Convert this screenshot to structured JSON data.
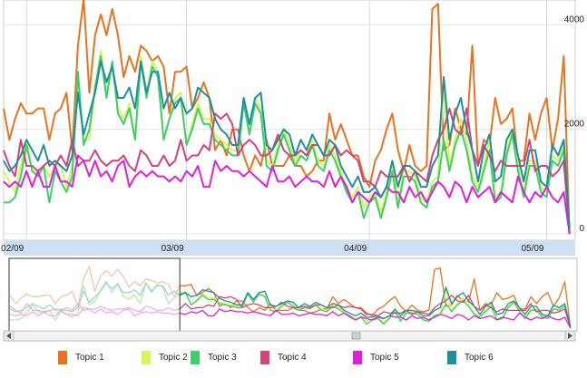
{
  "chart_data": {
    "type": "line",
    "title": "",
    "xlabel": "",
    "ylabel": "",
    "ylim": [
      0,
      4300
    ],
    "y_ticks": [
      {
        "label": "4000",
        "value": 4000
      },
      {
        "label": "2000",
        "value": 2000
      },
      {
        "label": "0",
        "value": 0
      }
    ],
    "x_range": [
      0,
      100
    ],
    "x_ticks": [
      {
        "label": "02/09",
        "value": 4
      },
      {
        "label": "03/09",
        "value": 32
      },
      {
        "label": "04/09",
        "value": 64
      },
      {
        "label": "05/09",
        "value": 95
      }
    ],
    "x": [
      0,
      1,
      2,
      3,
      4,
      5,
      6,
      7,
      8,
      9,
      10,
      11,
      12,
      13,
      14,
      15,
      16,
      17,
      18,
      19,
      20,
      21,
      22,
      23,
      24,
      25,
      26,
      27,
      28,
      29,
      30,
      31,
      32,
      33,
      34,
      35,
      36,
      37,
      38,
      39,
      40,
      41,
      42,
      43,
      44,
      45,
      46,
      47,
      48,
      49,
      50,
      51,
      52,
      53,
      54,
      55,
      56,
      57,
      58,
      59,
      60,
      61,
      62,
      63,
      64,
      65,
      66,
      67,
      68,
      69,
      70,
      71,
      72,
      73,
      74,
      75,
      76,
      77,
      78,
      79,
      80,
      81,
      82,
      83,
      84,
      85,
      86,
      87,
      88,
      89,
      90,
      91,
      92,
      93,
      94,
      95,
      96,
      97,
      98,
      99
    ],
    "series": [
      {
        "name": "Topic 1",
        "color": "#e8731e",
        "values": [
          2400,
          1800,
          2200,
          2500,
          2300,
          2300,
          2400,
          2400,
          1800,
          2300,
          2400,
          2700,
          1600,
          3600,
          4500,
          2700,
          3800,
          4200,
          3800,
          4300,
          3800,
          3000,
          3400,
          3100,
          3600,
          3500,
          3300,
          3400,
          3200,
          2300,
          3100,
          3100,
          3200,
          2400,
          2600,
          2900,
          2600,
          1600,
          1800,
          1500,
          2000,
          2000,
          1500,
          1200,
          1500,
          1300,
          1800,
          1300,
          1300,
          1300,
          1500,
          1300,
          1300,
          1100,
          1200,
          1400,
          1400,
          2300,
          1800,
          2100,
          1800,
          1500,
          1500,
          1100,
          900,
          1400,
          1600,
          2000,
          2300,
          1600,
          1200,
          1700,
          1300,
          1200,
          1300,
          4300,
          4400,
          1600,
          1700,
          2400,
          2000,
          1900,
          3600,
          1300,
          1800,
          1700,
          2600,
          2100,
          2200,
          2400,
          1400,
          1400,
          2300,
          1800,
          2300,
          2600,
          1600,
          2200,
          3400,
          0
        ]
      },
      {
        "name": "Topic 2",
        "color": "#d6f55a",
        "values": [
          1200,
          1000,
          800,
          1300,
          1800,
          1200,
          1200,
          1300,
          1100,
          1300,
          1300,
          900,
          1300,
          3000,
          1800,
          1800,
          2800,
          3500,
          2700,
          3200,
          2400,
          2200,
          2500,
          1800,
          3400,
          2700,
          3300,
          3100,
          1800,
          2200,
          2600,
          2700,
          1700,
          2100,
          2500,
          2200,
          2200,
          1900,
          1800,
          1700,
          1600,
          1600,
          2600,
          2000,
          2600,
          2400,
          1400,
          1300,
          1700,
          2000,
          1700,
          1400,
          1600,
          1500,
          1800,
          1400,
          1300,
          1700,
          1500,
          1200,
          900,
          700,
          900,
          500,
          700,
          800,
          400,
          800,
          1300,
          600,
          1200,
          1200,
          1100,
          700,
          600,
          1000,
          1100,
          2800,
          1300,
          1800,
          2200,
          1800,
          1100,
          900,
          1300,
          1800,
          700,
          800,
          1600,
          2000,
          1300,
          800,
          1400,
          1400,
          900,
          800,
          1500,
          1400,
          1700,
          100
        ]
      },
      {
        "name": "Topic 3",
        "color": "#3dd06a",
        "values": [
          600,
          600,
          700,
          1100,
          1700,
          1200,
          1100,
          1300,
          600,
          1200,
          1000,
          800,
          1100,
          3100,
          1700,
          2000,
          2800,
          3400,
          2600,
          3300,
          2300,
          2100,
          2400,
          1800,
          3300,
          2600,
          3200,
          3000,
          1800,
          2200,
          2500,
          2600,
          1700,
          2000,
          2400,
          2100,
          2100,
          1800,
          1700,
          1600,
          1500,
          1500,
          2500,
          1900,
          2500,
          2300,
          1300,
          1200,
          1600,
          1900,
          1600,
          1300,
          1500,
          1400,
          1700,
          1300,
          1200,
          1600,
          1400,
          1100,
          800,
          600,
          800,
          300,
          600,
          700,
          300,
          700,
          1200,
          500,
          1100,
          1100,
          1000,
          600,
          500,
          900,
          1000,
          1800,
          1200,
          1700,
          2000,
          1600,
          1000,
          800,
          1200,
          1600,
          600,
          700,
          1500,
          1900,
          1200,
          700,
          1300,
          1300,
          800,
          700,
          1400,
          1300,
          1600,
          0
        ]
      },
      {
        "name": "Topic 4",
        "color": "#d4437a",
        "values": [
          1600,
          1300,
          1100,
          1800,
          1300,
          1300,
          1200,
          1300,
          1400,
          1300,
          1500,
          1300,
          1800,
          1300,
          1400,
          1400,
          1600,
          1400,
          1300,
          1400,
          1400,
          1500,
          1300,
          1200,
          1600,
          1500,
          1300,
          1300,
          1500,
          1300,
          1400,
          1800,
          1400,
          1500,
          1500,
          1700,
          1600,
          2300,
          2200,
          2300,
          2100,
          1500,
          1700,
          1800,
          1700,
          1500,
          1500,
          1600,
          1900,
          1600,
          1500,
          1500,
          1600,
          1500,
          1700,
          1700,
          1500,
          1500,
          1700,
          1500,
          1600,
          1500,
          1400,
          1000,
          1000,
          900,
          1200,
          1100,
          1100,
          1100,
          1300,
          1000,
          1200,
          1100,
          1000,
          1500,
          1800,
          2000,
          2400,
          2000,
          1900,
          2400,
          1600,
          1300,
          1700,
          1500,
          1200,
          1400,
          1300,
          1300,
          1300,
          1300,
          1800,
          1200,
          1300,
          1300,
          1100,
          1200,
          1400,
          0
        ]
      },
      {
        "name": "Topic 5",
        "color": "#e11ee0",
        "values": [
          1000,
          900,
          1000,
          900,
          1200,
          900,
          1200,
          900,
          900,
          1300,
          1000,
          1000,
          900,
          1500,
          1400,
          1100,
          1400,
          1100,
          1200,
          1000,
          1300,
          1400,
          900,
          1100,
          1200,
          1100,
          1200,
          1100,
          1100,
          1000,
          1100,
          1000,
          1200,
          1100,
          1300,
          900,
          900,
          1400,
          1200,
          1300,
          1200,
          1200,
          1100,
          1200,
          1100,
          1000,
          900,
          1300,
          1000,
          1000,
          1100,
          900,
          1000,
          1100,
          1000,
          1000,
          900,
          1200,
          900,
          1100,
          900,
          600,
          800,
          700,
          600,
          800,
          700,
          900,
          800,
          800,
          600,
          900,
          700,
          800,
          600,
          800,
          1000,
          900,
          700,
          1000,
          900,
          600,
          900,
          700,
          800,
          900,
          600,
          800,
          700,
          600,
          1100,
          800,
          600,
          800,
          700,
          900,
          700,
          600,
          800,
          0
        ]
      },
      {
        "name": "Topic 6",
        "color": "#1e8fa0",
        "values": [
          1400,
          1200,
          1300,
          1500,
          1800,
          1600,
          1400,
          1700,
          1300,
          1400,
          1300,
          1200,
          1500,
          2700,
          1900,
          2300,
          2700,
          3300,
          2900,
          3200,
          2600,
          2600,
          2800,
          2400,
          3300,
          2700,
          3100,
          3100,
          2400,
          2700,
          2400,
          2600,
          2300,
          2400,
          2800,
          2700,
          2600,
          2200,
          2000,
          1900,
          1700,
          1700,
          2600,
          2100,
          2600,
          2700,
          1700,
          1600,
          1800,
          2000,
          1900,
          1500,
          1800,
          1600,
          1900,
          1700,
          1500,
          1800,
          1700,
          1300,
          1100,
          900,
          1100,
          800,
          800,
          900,
          700,
          900,
          1400,
          900,
          1300,
          1300,
          1200,
          900,
          900,
          1300,
          1500,
          3000,
          1800,
          2300,
          2600,
          2000,
          1600,
          1000,
          1600,
          1900,
          1000,
          1100,
          1800,
          2000,
          1500,
          1000,
          1600,
          1600,
          1000,
          900,
          1700,
          1500,
          1800,
          100
        ]
      }
    ],
    "navigator": {
      "window_range": [
        0,
        30
      ]
    },
    "legend_position": "bottom"
  }
}
